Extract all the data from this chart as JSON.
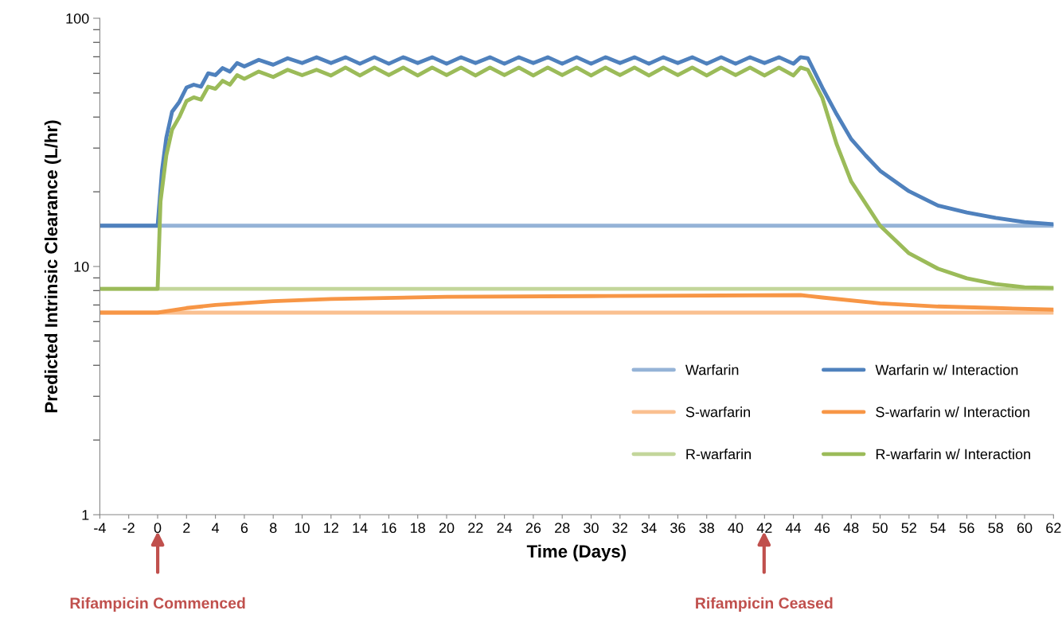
{
  "chart_data": {
    "type": "line",
    "xlabel": "Time (Days)",
    "ylabel": "Predicted Intrinsic Clearance (L/hr)",
    "log": "y",
    "xlim": [
      -4,
      62
    ],
    "ylim": [
      1,
      100
    ],
    "xticks": [
      -4,
      -2,
      0,
      2,
      4,
      6,
      8,
      10,
      12,
      14,
      16,
      18,
      20,
      22,
      24,
      26,
      28,
      30,
      32,
      34,
      36,
      38,
      40,
      42,
      44,
      46,
      48,
      50,
      52,
      54,
      56,
      58,
      60,
      62
    ],
    "yticks": [
      1,
      10,
      100
    ],
    "grid": false,
    "legend": "bottom right",
    "marker": "none",
    "line_style": "solid",
    "annotations": [
      "Rifampicin Commenced",
      "Rifampicin Ceased"
    ],
    "series": [
      {
        "name": "Warfarin",
        "color": "#95b3d7",
        "x": [
          -4,
          62
        ],
        "values": [
          14.6,
          14.6
        ]
      },
      {
        "name": "Warfarin w/ Interaction",
        "color": "#4f81bd",
        "x": [
          -4,
          -0.1,
          0,
          0.3,
          0.6,
          1,
          1.5,
          2,
          2.5,
          3,
          3.5,
          4,
          4.5,
          5,
          5.5,
          6,
          7,
          8,
          9,
          10,
          11,
          12,
          13,
          14,
          15,
          16,
          17,
          18,
          19,
          20,
          21,
          22,
          23,
          24,
          25,
          26,
          27,
          28,
          29,
          30,
          31,
          32,
          33,
          34,
          35,
          36,
          37,
          38,
          39,
          40,
          41,
          42,
          43,
          44,
          44.5,
          45,
          46,
          47,
          48,
          49,
          50,
          52,
          54,
          56,
          58,
          60,
          62
        ],
        "values": [
          14.6,
          14.6,
          14.6,
          24.3,
          33,
          42,
          46,
          52.6,
          54,
          53,
          60,
          59,
          63,
          61,
          66,
          64,
          68,
          65,
          69,
          66,
          69.7,
          66,
          69.7,
          65.6,
          69.7,
          65.6,
          69.7,
          66,
          69.7,
          65.6,
          69.7,
          66,
          69.7,
          65.6,
          69.7,
          66,
          69.7,
          65.6,
          69.7,
          65.6,
          69.7,
          66,
          69.7,
          65.6,
          69.7,
          66,
          69.7,
          65.6,
          69.7,
          65.6,
          69.7,
          66,
          69.7,
          65.6,
          69.7,
          69,
          52.6,
          41,
          32.6,
          28,
          24.3,
          20.1,
          17.6,
          16.5,
          15.7,
          15.1,
          14.8
        ]
      },
      {
        "name": "S-warfarin",
        "color": "#fac090",
        "x": [
          -4,
          62
        ],
        "values": [
          6.52,
          6.52
        ]
      },
      {
        "name": "S-warfarin w/ Interaction",
        "color": "#f79646",
        "x": [
          -4,
          0,
          2,
          4,
          8,
          12,
          20,
          30,
          44.5,
          46,
          50,
          54,
          58,
          62
        ],
        "values": [
          6.52,
          6.52,
          6.8,
          7.0,
          7.25,
          7.4,
          7.55,
          7.6,
          7.67,
          7.5,
          7.1,
          6.9,
          6.8,
          6.7
        ]
      },
      {
        "name": "R-warfarin",
        "color": "#c3d69b",
        "x": [
          -4,
          62
        ],
        "values": [
          8.13,
          8.13
        ]
      },
      {
        "name": "R-warfarin w/ Interaction",
        "color": "#9bbb59",
        "x": [
          -4,
          -0.1,
          0,
          0.2,
          0.6,
          1,
          1.5,
          2,
          2.5,
          3,
          3.5,
          4,
          4.5,
          5,
          5.5,
          6,
          7,
          8,
          9,
          10,
          11,
          12,
          13,
          14,
          15,
          16,
          17,
          18,
          19,
          20,
          21,
          22,
          23,
          24,
          25,
          26,
          27,
          28,
          29,
          30,
          31,
          32,
          33,
          34,
          35,
          36,
          37,
          38,
          39,
          40,
          41,
          42,
          43,
          44,
          44.5,
          45,
          46,
          47,
          48,
          50,
          52,
          54,
          56,
          58,
          60,
          62
        ],
        "values": [
          8.13,
          8.13,
          8.13,
          18.3,
          28,
          35.6,
          40,
          46.4,
          48,
          47,
          53,
          52,
          56,
          54,
          59,
          57,
          61,
          58,
          62,
          59,
          62,
          58.8,
          63.3,
          58.8,
          63.3,
          59,
          63.3,
          58.8,
          63.3,
          59,
          63.3,
          58.8,
          63.3,
          59,
          63.3,
          58.8,
          63.3,
          59,
          63.3,
          58.8,
          63.3,
          59,
          63.3,
          58.8,
          63.3,
          59,
          63.3,
          58.8,
          63.3,
          59,
          63.3,
          58.8,
          63.3,
          58.8,
          63.3,
          62,
          47.8,
          31,
          22,
          14.6,
          11.3,
          9.8,
          8.96,
          8.5,
          8.25,
          8.2
        ]
      }
    ]
  }
}
